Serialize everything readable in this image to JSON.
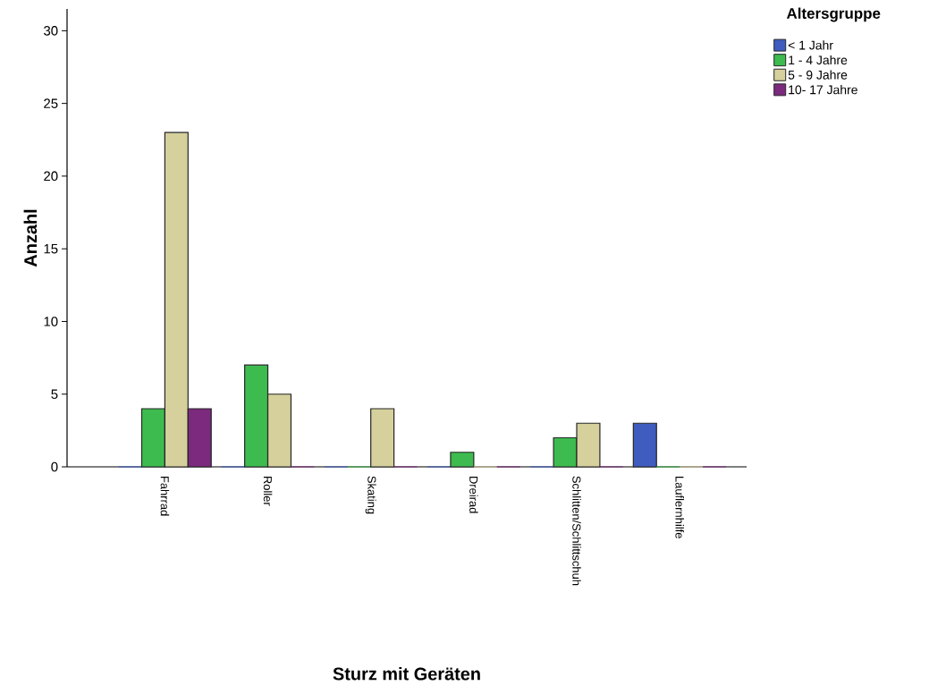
{
  "chart_data": {
    "type": "bar",
    "xlabel": "Sturz mit Geräten",
    "ylabel": "Anzahl",
    "legend_title": "Altersgruppe",
    "legend": "top right",
    "grid": false,
    "categories": [
      "Fahrrad",
      "Roller",
      "Skating",
      "Dreirad",
      "Schlitten/Schlittschuh",
      "Lauflernhilfe"
    ],
    "series": [
      {
        "name": "< 1 Jahr",
        "color": "#3f5cbf",
        "values": [
          0,
          0,
          0,
          0,
          0,
          3
        ]
      },
      {
        "name": "1 - 4 Jahre",
        "color": "#3dbb4f",
        "values": [
          4,
          7,
          0,
          1,
          2,
          0
        ]
      },
      {
        "name": "5 - 9 Jahre",
        "color": "#d5d09c",
        "values": [
          23,
          5,
          4,
          0,
          3,
          0
        ]
      },
      {
        "name": "10- 17  Jahre",
        "color": "#7b2a7d",
        "values": [
          4,
          0,
          0,
          0,
          0,
          0
        ]
      }
    ],
    "ylim": [
      0,
      31.5
    ],
    "yticks": [
      0,
      5,
      10,
      15,
      20,
      25,
      30
    ]
  }
}
